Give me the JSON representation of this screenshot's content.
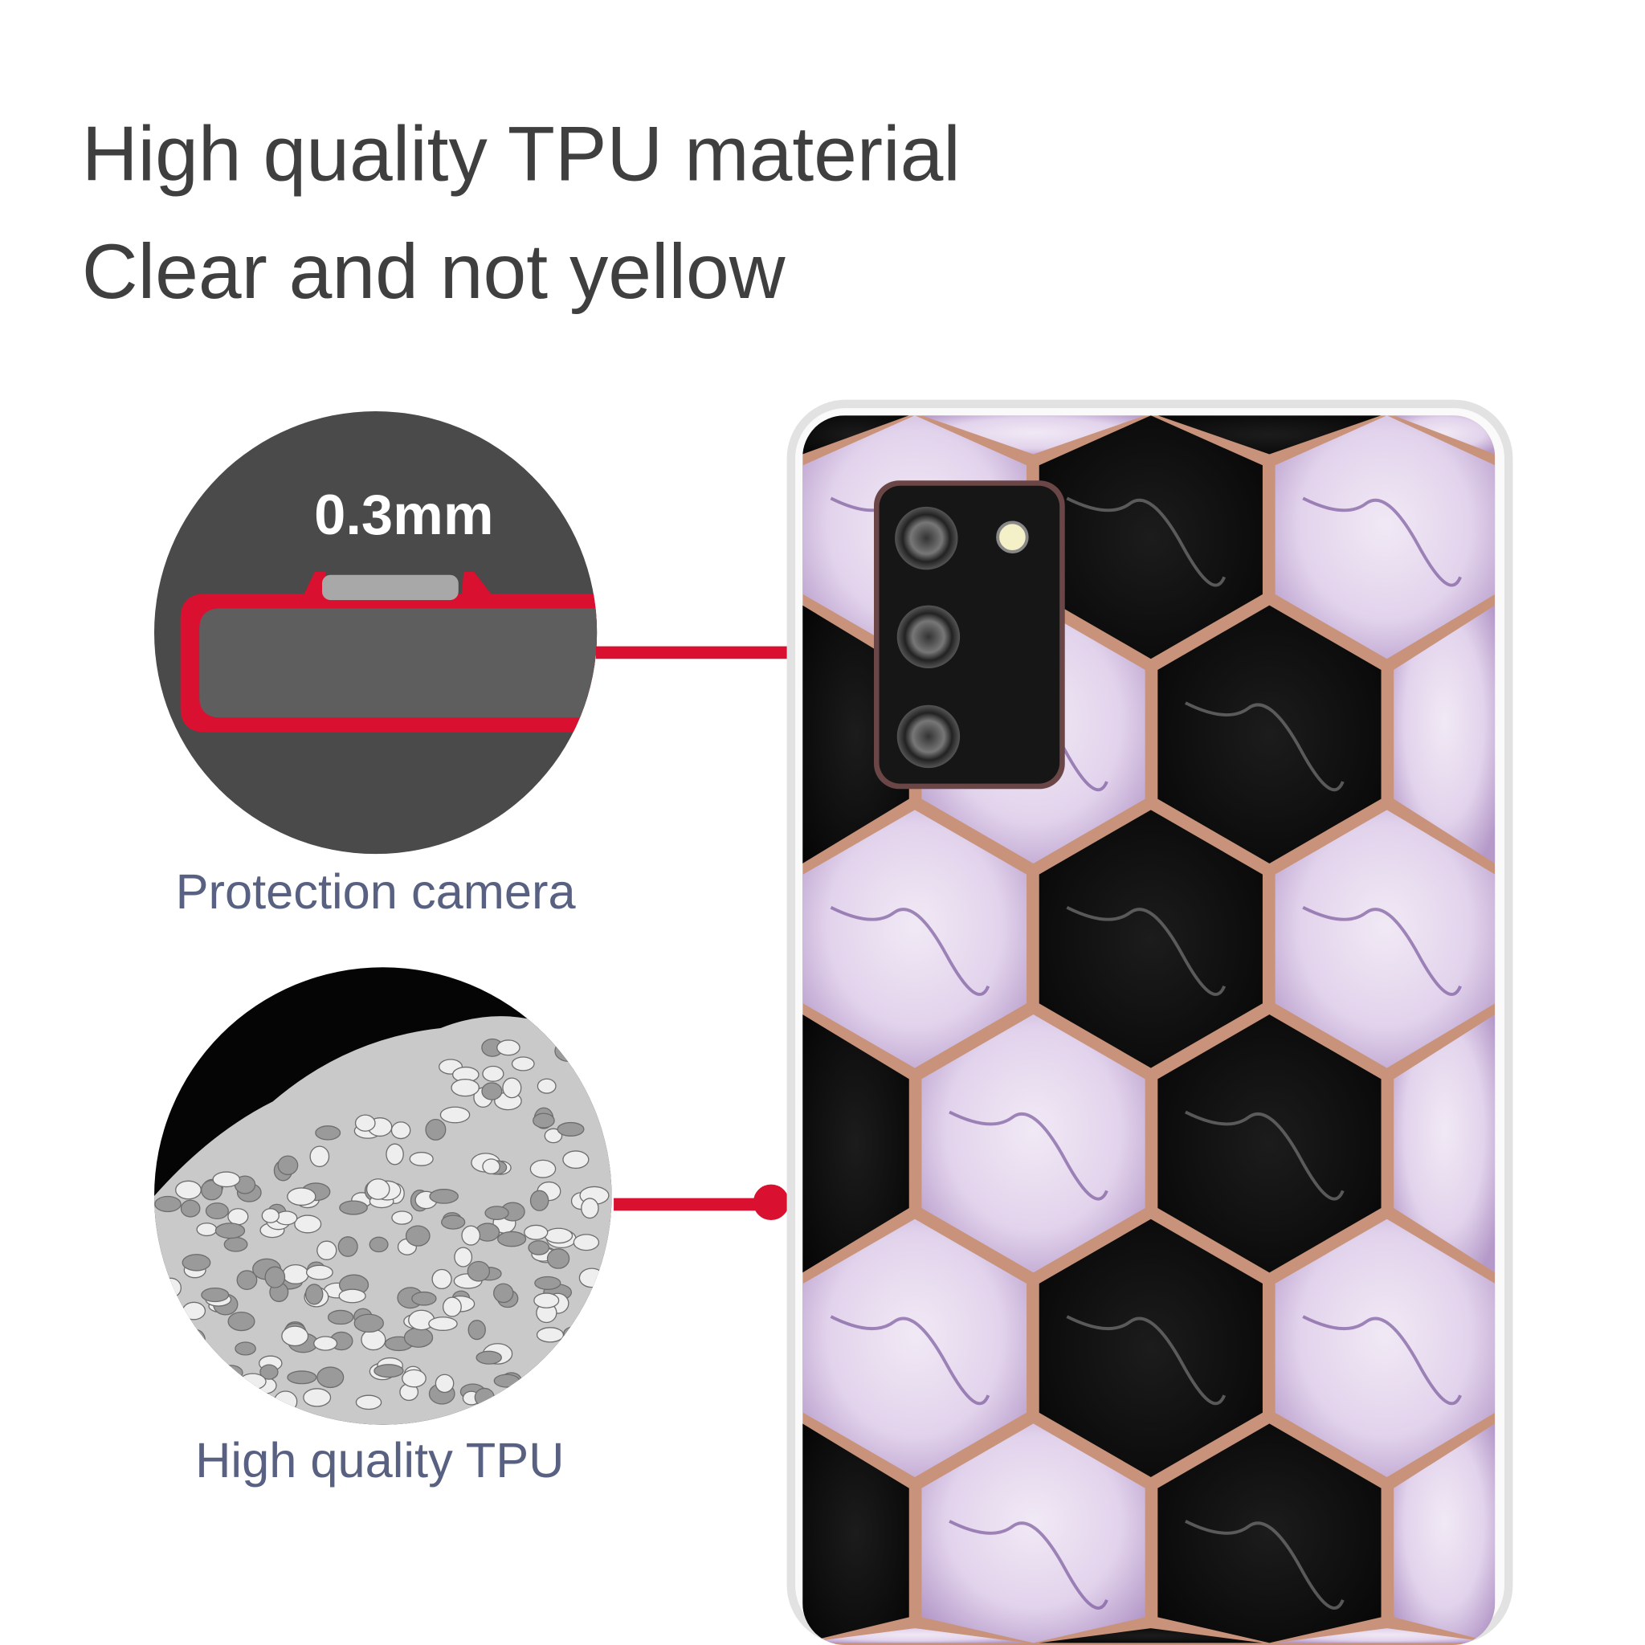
{
  "headline": {
    "line1": "High quality TPU material",
    "line2": "Clear and not yellow"
  },
  "callouts": [
    {
      "label": "Protection camera",
      "measurement": "0.3mm",
      "icon": "camera-lip-cross-section"
    },
    {
      "label": "High quality TPU",
      "icon": "tpu-granules"
    }
  ],
  "colors": {
    "accent_red": "#d9102f",
    "label_text": "#586182",
    "hex_border": "#c8937a",
    "marble_purple": "#e6d9ef",
    "marble_black": "#111111"
  }
}
